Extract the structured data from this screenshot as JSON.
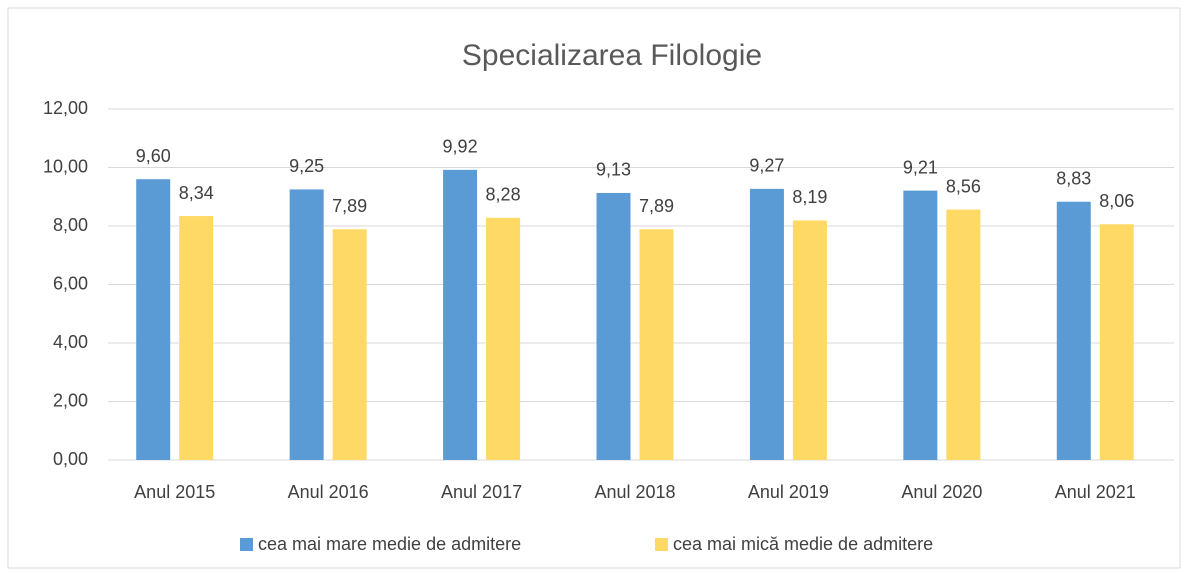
{
  "chart_data": {
    "type": "bar",
    "title": "Specializarea Filologie",
    "categories": [
      "Anul 2015",
      "Anul 2016",
      "Anul 2017",
      "Anul 2018",
      "Anul 2019",
      "Anul 2020",
      "Anul 2021"
    ],
    "series": [
      {
        "name": "cea mai mare medie de admitere",
        "color": "#5b9bd5",
        "values": [
          9.6,
          9.25,
          9.92,
          9.13,
          9.27,
          9.21,
          8.83
        ],
        "value_labels": [
          "9,60",
          "9,25",
          "9,92",
          "9,13",
          "9,27",
          "9,21",
          "8,83"
        ]
      },
      {
        "name": "cea mai mică medie de admitere",
        "color": "#ffd966",
        "values": [
          8.34,
          7.89,
          8.28,
          7.89,
          8.19,
          8.56,
          8.06
        ],
        "value_labels": [
          "8,34",
          "7,89",
          "8,28",
          "7,89",
          "8,19",
          "8,56",
          "8,06"
        ]
      }
    ],
    "ylim": [
      0,
      12
    ],
    "yticks": [
      {
        "value": 0,
        "label": "0,00"
      },
      {
        "value": 2,
        "label": "2,00"
      },
      {
        "value": 4,
        "label": "4,00"
      },
      {
        "value": 6,
        "label": "6,00"
      },
      {
        "value": 8,
        "label": "8,00"
      },
      {
        "value": 10,
        "label": "10,00"
      },
      {
        "value": 12,
        "label": "12,00"
      }
    ],
    "grid": true,
    "legend": "bottom"
  }
}
